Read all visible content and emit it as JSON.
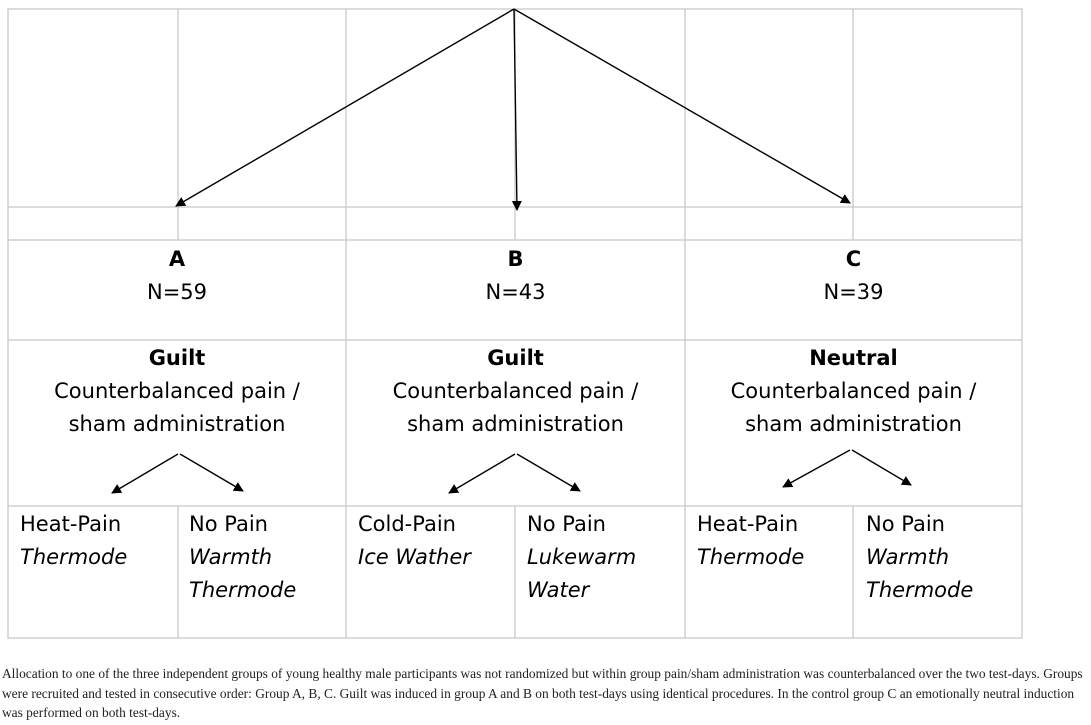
{
  "groups": [
    {
      "letter": "A",
      "n": "N=59",
      "condition": "Guilt",
      "desc_line1": "Counterbalanced pain /",
      "desc_line2": "sham administration",
      "left": {
        "title": "Heat-Pain",
        "sub": [
          "Thermode"
        ]
      },
      "right": {
        "title": "No Pain",
        "sub": [
          "Warmth",
          "Thermode"
        ]
      }
    },
    {
      "letter": "B",
      "n": "N=43",
      "condition": "Guilt",
      "desc_line1": "Counterbalanced pain /",
      "desc_line2": "sham administration",
      "left": {
        "title": "Cold-Pain",
        "sub": [
          "Ice Wather"
        ]
      },
      "right": {
        "title": "No Pain",
        "sub": [
          "Lukewarm",
          "Water"
        ]
      }
    },
    {
      "letter": "C",
      "n": "N=39",
      "condition": "Neutral",
      "desc_line1": "Counterbalanced pain /",
      "desc_line2": "sham administration",
      "left": {
        "title": "Heat-Pain",
        "sub": [
          "Thermode"
        ]
      },
      "right": {
        "title": "No Pain",
        "sub": [
          "Warmth",
          "Thermode"
        ]
      }
    }
  ],
  "caption": "Allocation to one of the three independent groups of young healthy male participants was not randomized but within group pain/sham administration was counterbalanced over the two test-days. Groups were recruited and tested in consecutive order: Group A, B, C. Guilt was induced in group A and B on both test-days using identical procedures. In the control group C an emotionally neutral induction was performed on both test-days.",
  "colors": {
    "grid": "#c8c8c8",
    "ink": "#000000"
  }
}
